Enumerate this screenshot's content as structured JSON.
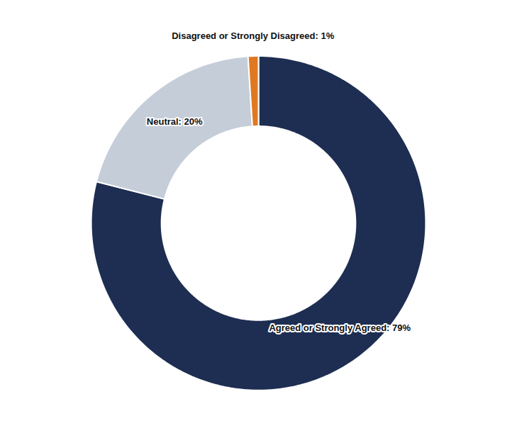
{
  "chart_data": {
    "type": "pie",
    "categories": [
      "Agreed or Strongly Agreed",
      "Neutral",
      "Disagreed or Strongly Disagreed"
    ],
    "values": [
      79,
      20,
      1
    ],
    "value_labels": [
      "Agreed or Strongly Agreed: 79%",
      "Neutral: 20%",
      "Disagreed or Strongly Disagreed: 1%"
    ],
    "colors": [
      "#1e2e52",
      "#c5cdd9",
      "#e07820"
    ],
    "data_labels": true
  }
}
